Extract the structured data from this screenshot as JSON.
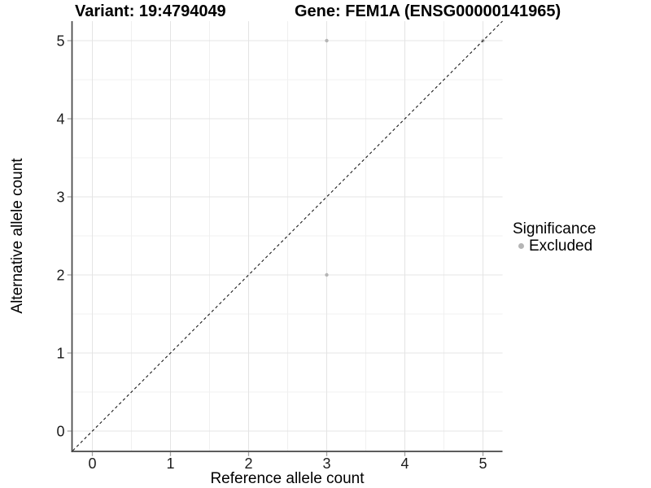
{
  "chart_data": {
    "type": "scatter",
    "title_left": "Variant: 19:4794049",
    "title_right": "Gene: FEM1A (ENSG00000141965)",
    "xlabel": "Reference allele count",
    "ylabel": "Alternative allele count",
    "xlim": [
      -0.25,
      5.25
    ],
    "ylim": [
      -0.25,
      5.25
    ],
    "x_ticks": [
      0,
      1,
      2,
      3,
      4,
      5
    ],
    "y_ticks": [
      0,
      1,
      2,
      3,
      4,
      5
    ],
    "x_minor": [
      0.5,
      1.5,
      2.5,
      3.5,
      4.5
    ],
    "y_minor": [
      0.5,
      1.5,
      2.5,
      3.5,
      4.5
    ],
    "grid": true,
    "points": [
      {
        "x": 3,
        "y": 5,
        "significance": "Excluded"
      },
      {
        "x": 3,
        "y": 2,
        "significance": "Excluded"
      },
      {
        "x": 5,
        "y": 5,
        "significance": "Excluded"
      }
    ],
    "reference_line": {
      "type": "identity",
      "slope": 1,
      "intercept": 0,
      "style": "dashed"
    },
    "legend": {
      "title": "Significance",
      "position": "right",
      "items": [
        {
          "label": "Excluded",
          "color": "#b5b5b5"
        }
      ]
    },
    "colors": {
      "point_excluded": "#b5b5b5",
      "grid_major": "#e4e4e4",
      "grid_minor": "#f0f0f0",
      "axis_line": "#454545",
      "tick_mark": "#a3a3a3",
      "tick_label": "#1c1c1c",
      "identity_line": "#1a1a1a",
      "background": "#ffffff"
    }
  }
}
